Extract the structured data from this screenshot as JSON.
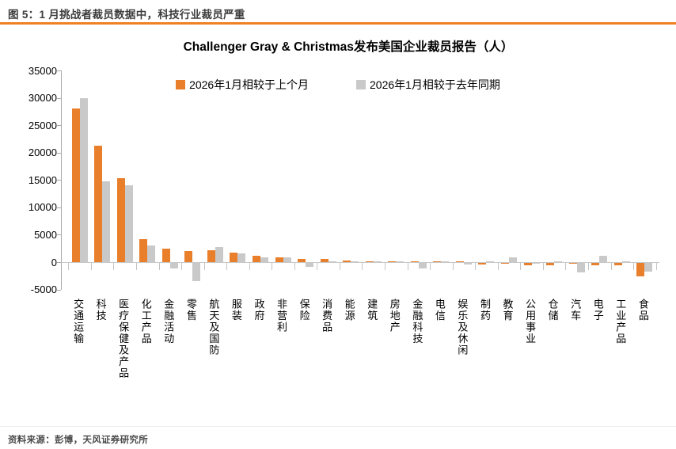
{
  "page": {
    "header_title": "图 5：1 月挑战者裁员数据中，科技行业裁员严重",
    "source": "资料来源：彭博，天风证券研究所"
  },
  "colors": {
    "accent_orange": "#e97e2b",
    "header_rule_orange": "#f08123",
    "series_gray": "#c9c9c9",
    "axis_gray": "#a9a9a9"
  },
  "chart_data": {
    "type": "bar",
    "title": "Challenger Gray & Christmas发布美国企业裁员报告（人）",
    "categories": [
      "交通运输",
      "科技",
      "医疗保健及产品",
      "化工产品",
      "金融活动",
      "零售",
      "航天及国防",
      "服装",
      "政府",
      "非营利",
      "保险",
      "消费品",
      "能源",
      "建筑",
      "房地产",
      "金融科技",
      "电信",
      "娱乐及休闲",
      "制药",
      "教育",
      "公用事业",
      "仓储",
      "汽车",
      "电子",
      "工业产品",
      "食品"
    ],
    "series": [
      {
        "name": "2026年1月相较于上个月",
        "color": "#e97e2b",
        "values": [
          28100,
          21300,
          15300,
          4200,
          2400,
          2000,
          2100,
          1800,
          1100,
          900,
          600,
          600,
          350,
          150,
          50,
          100,
          100,
          200,
          -300,
          -200,
          -500,
          -400,
          -200,
          -400,
          -500,
          -2400
        ]
      },
      {
        "name": "2026年1月相较于去年同期",
        "color": "#c9c9c9",
        "values": [
          29900,
          14800,
          14100,
          3000,
          -1000,
          -3300,
          2800,
          1600,
          900,
          800,
          -700,
          200,
          100,
          100,
          50,
          -1000,
          200,
          -300,
          100,
          800,
          -100,
          150,
          -1800,
          1100,
          150,
          -1600
        ]
      }
    ],
    "ylabel": "",
    "xlabel": "",
    "ylim": [
      -5000,
      35000
    ],
    "ytick_step": 5000,
    "grid": false,
    "legend_position": "top"
  }
}
